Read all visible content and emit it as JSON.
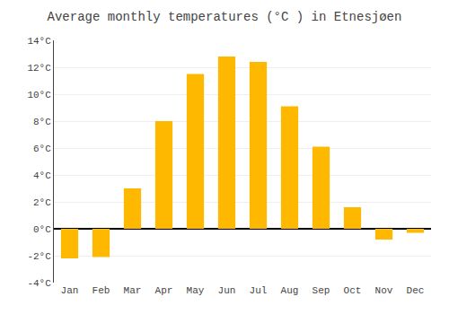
{
  "chart_data": {
    "type": "bar",
    "title": "Average monthly temperatures (°C ) in Etnesjøen",
    "categories": [
      "Jan",
      "Feb",
      "Mar",
      "Apr",
      "May",
      "Jun",
      "Jul",
      "Aug",
      "Sep",
      "Oct",
      "Nov",
      "Dec"
    ],
    "values": [
      -2.2,
      -2.1,
      3.0,
      8.0,
      11.5,
      12.8,
      12.4,
      9.1,
      6.1,
      1.6,
      -0.8,
      -0.3
    ],
    "color": "#FFB800",
    "ylim": [
      -4,
      14
    ],
    "yticks": [
      {
        "value": -4,
        "label": "-4°C"
      },
      {
        "value": -2,
        "label": "-2°C"
      },
      {
        "value": 0,
        "label": "0°C"
      },
      {
        "value": 2,
        "label": "2°C"
      },
      {
        "value": 4,
        "label": "4°C"
      },
      {
        "value": 6,
        "label": "6°C"
      },
      {
        "value": 8,
        "label": "8°C"
      },
      {
        "value": 10,
        "label": "10°C"
      },
      {
        "value": 12,
        "label": "12°C"
      },
      {
        "value": 14,
        "label": "14°C"
      }
    ],
    "grid": true
  }
}
